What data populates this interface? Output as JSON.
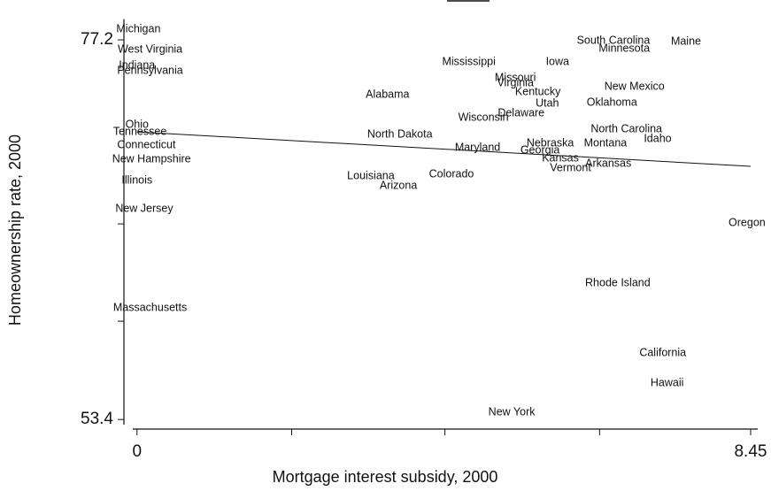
{
  "chart_data": {
    "type": "scatter",
    "x_label": "Mortgage interest subsidy, 2000",
    "y_label": "Homeownership rate, 2000",
    "xlim": [
      -0.18,
      8.7
    ],
    "ylim": [
      52.8,
      78.5
    ],
    "xticks": [
      0,
      8.45
    ],
    "yticks": [
      53.4,
      77.2
    ],
    "xticks_minor": [
      2.13,
      4.24,
      6.37
    ],
    "yticks_minor": [
      65.66,
      59.56
    ],
    "fit_line": {
      "x": [
        0,
        8.45
      ],
      "y": [
        71.43,
        69.27
      ]
    },
    "labels": [
      "Michigan",
      "West Virginia",
      "Indiana",
      "Pennsylvania",
      "Ohio",
      "Tennessee",
      "Connecticut",
      "New Hampshire",
      "Illinois",
      "New Jersey",
      "Massachusetts",
      "Alabama",
      "North Dakota",
      "Louisiana",
      "Arizona",
      "Colorado",
      "Mississippi",
      "Iowa",
      "Missouri",
      "Virginia",
      "Kentucky",
      "Utah",
      "Oklahoma",
      "Wisconsin",
      "Delaware",
      "Maryland",
      "Georgia",
      "Nebraska",
      "Montana",
      "Kansas",
      "Vermont",
      "Arkansas",
      "South Carolina",
      "Minnesota",
      "Maine",
      "New Mexico",
      "North Carolina",
      "Idaho",
      "Oregon",
      "Rhode Island",
      "California",
      "Hawaii",
      "New York"
    ],
    "x": [
      0.02,
      0.18,
      0.0,
      0.18,
      0.0,
      0.04,
      0.13,
      0.2,
      0.0,
      0.1,
      0.18,
      3.45,
      3.62,
      3.22,
      3.6,
      4.33,
      4.57,
      5.79,
      5.21,
      5.21,
      5.52,
      5.65,
      6.54,
      4.77,
      5.29,
      4.69,
      5.55,
      5.69,
      6.45,
      5.83,
      5.97,
      6.49,
      6.56,
      6.71,
      7.56,
      6.85,
      6.74,
      7.17,
      8.4,
      6.62,
      7.24,
      7.3,
      5.16
    ],
    "values": [
      77.87,
      76.59,
      75.59,
      75.26,
      71.88,
      71.43,
      70.6,
      69.71,
      68.38,
      66.61,
      60.39,
      73.76,
      71.27,
      68.66,
      68.05,
      68.77,
      75.81,
      75.81,
      74.81,
      74.48,
      73.93,
      73.21,
      73.26,
      72.32,
      72.6,
      70.43,
      70.27,
      70.71,
      70.71,
      69.77,
      69.16,
      69.44,
      77.14,
      76.65,
      77.09,
      74.26,
      71.6,
      70.99,
      65.72,
      61.95,
      57.57,
      55.68,
      53.85
    ]
  }
}
